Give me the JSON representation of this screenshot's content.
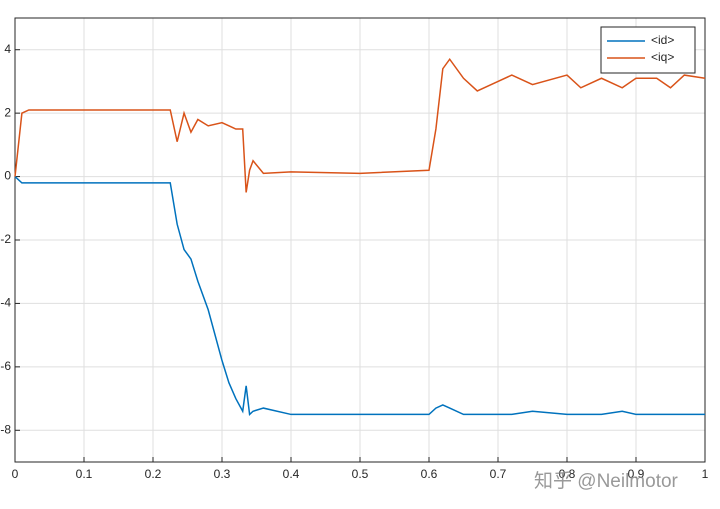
{
  "chart_data": {
    "type": "line",
    "x": [
      0,
      0.01,
      0.02,
      0.1,
      0.2,
      0.225,
      0.235,
      0.245,
      0.255,
      0.265,
      0.28,
      0.3,
      0.31,
      0.32,
      0.33,
      0.335,
      0.34,
      0.345,
      0.36,
      0.4,
      0.5,
      0.6,
      0.61,
      0.62,
      0.63,
      0.65,
      0.67,
      0.7,
      0.72,
      0.75,
      0.8,
      0.82,
      0.85,
      0.88,
      0.9,
      0.93,
      0.95,
      0.97,
      1
    ],
    "series": [
      {
        "name": "<id>",
        "color": "#0072BD",
        "values": [
          0,
          -0.2,
          -0.2,
          -0.2,
          -0.2,
          -0.2,
          -1.5,
          -2.3,
          -2.6,
          -3.3,
          -4.2,
          -5.8,
          -6.5,
          -7.0,
          -7.4,
          -6.6,
          -7.5,
          -7.4,
          -7.3,
          -7.5,
          -7.5,
          -7.5,
          -7.3,
          -7.2,
          -7.3,
          -7.5,
          -7.5,
          -7.5,
          -7.5,
          -7.4,
          -7.5,
          -7.5,
          -7.5,
          -7.4,
          -7.5,
          -7.5,
          -7.5,
          -7.5,
          -7.5
        ]
      },
      {
        "name": "<iq>",
        "color": "#D95319",
        "values": [
          0,
          2.0,
          2.1,
          2.1,
          2.1,
          2.1,
          1.1,
          2.0,
          1.4,
          1.8,
          1.6,
          1.7,
          1.6,
          1.5,
          1.5,
          -0.5,
          0.2,
          0.5,
          0.1,
          0.15,
          0.1,
          0.2,
          1.5,
          3.4,
          3.7,
          3.1,
          2.7,
          3.0,
          3.2,
          2.9,
          3.2,
          2.8,
          3.1,
          2.8,
          3.1,
          3.1,
          2.8,
          3.2,
          3.1
        ]
      }
    ],
    "xlim": [
      0,
      1
    ],
    "xticks": [
      0,
      0.1,
      0.2,
      0.3,
      0.4,
      0.5,
      0.6,
      0.7,
      0.8,
      0.9,
      1
    ],
    "ylim": [
      -9,
      5
    ],
    "yticks": [
      -8,
      -6,
      -4,
      -2,
      0,
      2,
      4
    ],
    "grid": true,
    "legend": "top-right",
    "watermark": "知乎 @Neilmotor"
  }
}
